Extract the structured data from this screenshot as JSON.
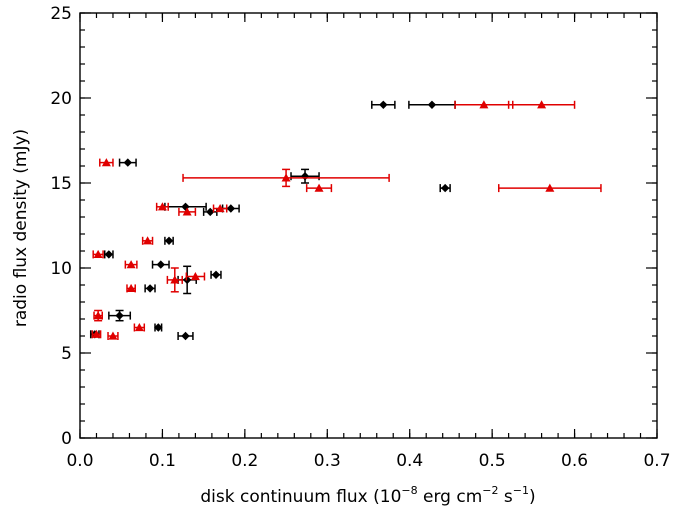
{
  "chart_data": {
    "type": "scatter",
    "title": "",
    "xlabel_text": "disk continuum flux (10",
    "xlabel_exp1": "−8",
    "xlabel_mid1": " erg cm",
    "xlabel_exp2": "−2",
    "xlabel_mid2": " s",
    "xlabel_exp3": "−1",
    "xlabel_end": ")",
    "ylabel": "radio flux density (mJy)",
    "xlim": [
      0.0,
      0.7
    ],
    "ylim": [
      0,
      25
    ],
    "xticks": [
      "0.0",
      "0.1",
      "0.2",
      "0.3",
      "0.4",
      "0.5",
      "0.6",
      "0.7"
    ],
    "yticks": [
      "0",
      "5",
      "10",
      "15",
      "20",
      "25"
    ],
    "grid": false,
    "legend": "none",
    "series": [
      {
        "color": "#000000",
        "marker": "diamond",
        "points": [
          {
            "x": 0.368,
            "y": 19.6,
            "xerr": 0.014,
            "yerr": 0
          },
          {
            "x": 0.427,
            "y": 19.6,
            "xerr": 0.028,
            "yerr": 0
          },
          {
            "x": 0.058,
            "y": 16.2,
            "xerr": 0.01,
            "yerr": 0
          },
          {
            "x": 0.273,
            "y": 15.4,
            "xerr": 0.017,
            "yerr": 0.4
          },
          {
            "x": 0.443,
            "y": 14.7,
            "xerr": 0.006,
            "yerr": 0
          },
          {
            "x": 0.128,
            "y": 13.6,
            "xerr": 0.025,
            "yerr": 0
          },
          {
            "x": 0.183,
            "y": 13.5,
            "xerr": 0.01,
            "yerr": 0
          },
          {
            "x": 0.158,
            "y": 13.3,
            "xerr": 0.008,
            "yerr": 0
          },
          {
            "x": 0.108,
            "y": 11.6,
            "xerr": 0.005,
            "yerr": 0
          },
          {
            "x": 0.035,
            "y": 10.8,
            "xerr": 0.005,
            "yerr": 0
          },
          {
            "x": 0.098,
            "y": 10.2,
            "xerr": 0.01,
            "yerr": 0
          },
          {
            "x": 0.165,
            "y": 9.6,
            "xerr": 0.006,
            "yerr": 0
          },
          {
            "x": 0.13,
            "y": 9.3,
            "xerr": 0.011,
            "yerr": 0.8
          },
          {
            "x": 0.085,
            "y": 8.8,
            "xerr": 0.006,
            "yerr": 0
          },
          {
            "x": 0.048,
            "y": 7.2,
            "xerr": 0.013,
            "yerr": 0.3
          },
          {
            "x": 0.095,
            "y": 6.5,
            "xerr": 0.004,
            "yerr": 0
          },
          {
            "x": 0.018,
            "y": 6.1,
            "xerr": 0.005,
            "yerr": 0
          },
          {
            "x": 0.128,
            "y": 6.0,
            "xerr": 0.009,
            "yerr": 0
          }
        ]
      },
      {
        "color": "#e00000",
        "marker": "triangle",
        "points": [
          {
            "x": 0.49,
            "y": 19.6,
            "xerr": 0.035,
            "yerr": 0
          },
          {
            "x": 0.56,
            "y": 19.6,
            "xerr": 0.04,
            "yerr": 0
          },
          {
            "x": 0.032,
            "y": 16.2,
            "xerr": 0.008,
            "yerr": 0
          },
          {
            "x": 0.25,
            "y": 15.3,
            "xerr": 0.125,
            "yerr": 0.5
          },
          {
            "x": 0.29,
            "y": 14.7,
            "xerr": 0.015,
            "yerr": 0
          },
          {
            "x": 0.57,
            "y": 14.7,
            "xerr": 0.062,
            "yerr": 0
          },
          {
            "x": 0.1,
            "y": 13.6,
            "xerr": 0.007,
            "yerr": 0
          },
          {
            "x": 0.13,
            "y": 13.3,
            "xerr": 0.01,
            "yerr": 0
          },
          {
            "x": 0.17,
            "y": 13.5,
            "xerr": 0.008,
            "yerr": 0
          },
          {
            "x": 0.082,
            "y": 11.6,
            "xerr": 0.006,
            "yerr": 0
          },
          {
            "x": 0.022,
            "y": 10.8,
            "xerr": 0.006,
            "yerr": 0
          },
          {
            "x": 0.062,
            "y": 10.2,
            "xerr": 0.007,
            "yerr": 0
          },
          {
            "x": 0.14,
            "y": 9.5,
            "xerr": 0.011,
            "yerr": 0
          },
          {
            "x": 0.115,
            "y": 9.3,
            "xerr": 0.009,
            "yerr": 0.7
          },
          {
            "x": 0.062,
            "y": 8.8,
            "xerr": 0.005,
            "yerr": 0
          },
          {
            "x": 0.022,
            "y": 7.2,
            "xerr": 0.005,
            "yerr": 0.3
          },
          {
            "x": 0.072,
            "y": 6.5,
            "xerr": 0.006,
            "yerr": 0
          },
          {
            "x": 0.02,
            "y": 6.1,
            "xerr": 0.005,
            "yerr": 0
          },
          {
            "x": 0.04,
            "y": 6.0,
            "xerr": 0.006,
            "yerr": 0
          }
        ]
      }
    ]
  }
}
